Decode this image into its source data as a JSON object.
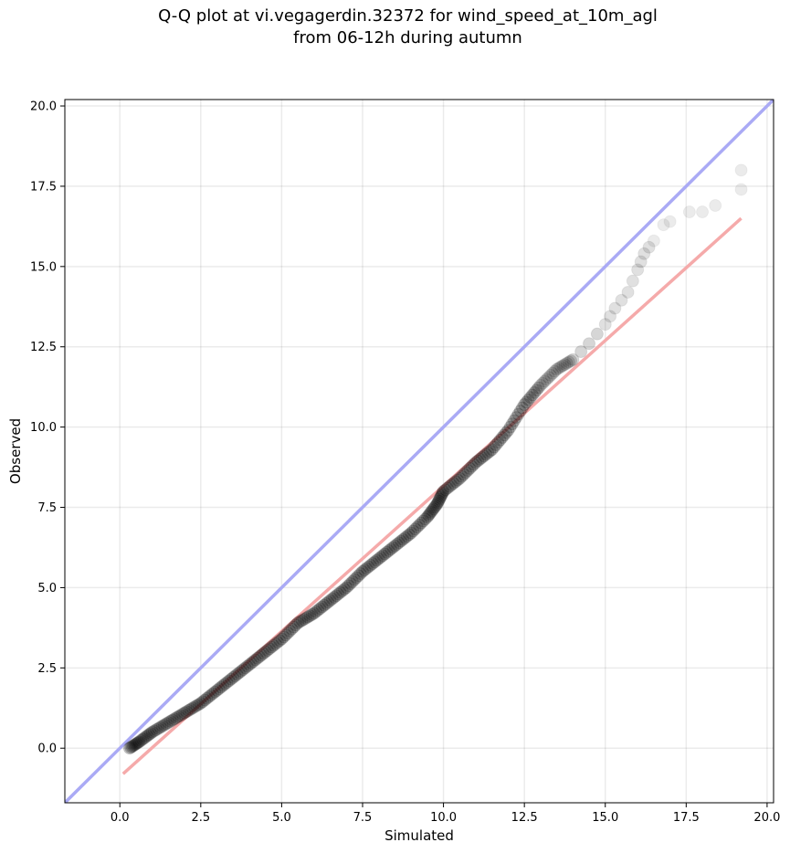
{
  "chart_data": {
    "type": "scatter",
    "title_line1": "Q-Q plot at vi.vegagerdin.32372 for wind_speed_at_10m_agl",
    "title_line2": "from 06-12h during autumn",
    "xlabel": "Simulated",
    "ylabel": "Observed",
    "xlim": [
      -1.7,
      20.2
    ],
    "ylim": [
      -1.7,
      20.2
    ],
    "xticks": [
      "0.0",
      "2.5",
      "5.0",
      "7.5",
      "10.0",
      "12.5",
      "15.0",
      "17.5",
      "20.0"
    ],
    "yticks": [
      "0.0",
      "2.5",
      "5.0",
      "7.5",
      "10.0",
      "12.5",
      "15.0",
      "17.5",
      "20.0"
    ],
    "grid": true,
    "reference_line": {
      "from": [
        -1.7,
        -1.7
      ],
      "to": [
        20.2,
        20.2
      ],
      "color": "#aaaaf5"
    },
    "fit_line": {
      "from": [
        0.1,
        -0.8
      ],
      "to": [
        19.2,
        16.5
      ],
      "color": "#f5aaaa"
    },
    "point_color": "#000000",
    "quantiles": {
      "x": [
        0.3,
        0.6,
        1.0,
        1.5,
        2.0,
        2.5,
        3.0,
        3.5,
        4.0,
        4.5,
        5.0,
        5.5,
        6.0,
        6.5,
        7.0,
        7.5,
        8.0,
        8.5,
        9.0,
        9.5,
        9.8,
        10.0,
        10.5,
        11.0,
        11.5,
        12.0,
        12.5,
        13.0,
        13.5,
        14.0,
        14.5,
        15.0,
        15.3,
        15.7,
        16.0,
        16.2,
        16.5,
        16.8,
        17.0,
        17.6,
        18.0,
        18.4,
        19.2,
        19.2
      ],
      "y": [
        0.0,
        0.2,
        0.5,
        0.8,
        1.1,
        1.4,
        1.8,
        2.2,
        2.6,
        3.0,
        3.4,
        3.9,
        4.2,
        4.6,
        5.0,
        5.5,
        5.9,
        6.3,
        6.7,
        7.2,
        7.6,
        8.0,
        8.4,
        8.9,
        9.3,
        9.9,
        10.7,
        11.3,
        11.8,
        12.1,
        12.6,
        13.2,
        13.7,
        14.2,
        14.9,
        15.4,
        15.8,
        16.3,
        16.4,
        16.7,
        16.7,
        16.9,
        17.4,
        18.0
      ]
    }
  }
}
